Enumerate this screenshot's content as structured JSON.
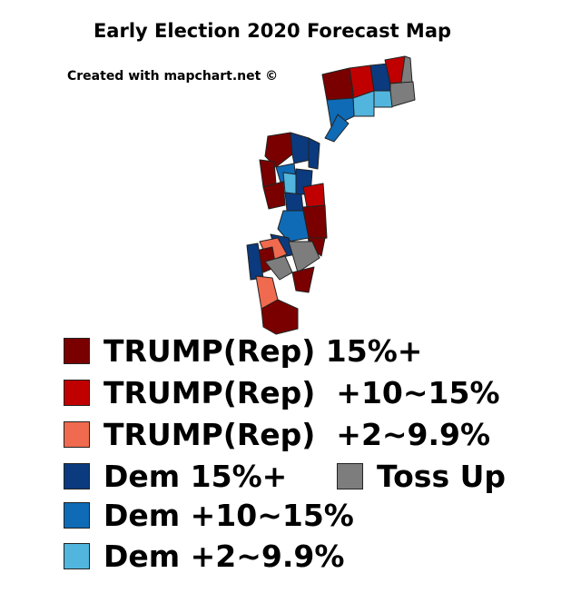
{
  "title": "Early Election 2020 Forecast Map",
  "credit": "Created with mapchart.net ©",
  "colors": {
    "trump_15_plus": "#7a0000",
    "trump_10_15": "#c00000",
    "trump_2_9_9": "#ef6a4e",
    "dem_15_plus": "#0b3a7e",
    "dem_10_15": "#0f6bb5",
    "dem_2_9_9": "#52b5dd",
    "toss_up": "#7d7d7d"
  },
  "legend": [
    {
      "label": "TRUMP(Rep) 15%+",
      "color": "#7a0000"
    },
    {
      "label": "TRUMP(Rep)  +10~15%",
      "color": "#c00000"
    },
    {
      "label": "TRUMP(Rep)  +2~9.9%",
      "color": "#ef6a4e"
    },
    {
      "label": "Dem 15%+",
      "color": "#0b3a7e"
    },
    {
      "label": "Toss Up",
      "color": "#7d7d7d"
    },
    {
      "label": "Dem +10~15%",
      "color": "#0f6bb5"
    },
    {
      "label": "Dem +2~9.9%",
      "color": "#52b5dd"
    }
  ]
}
